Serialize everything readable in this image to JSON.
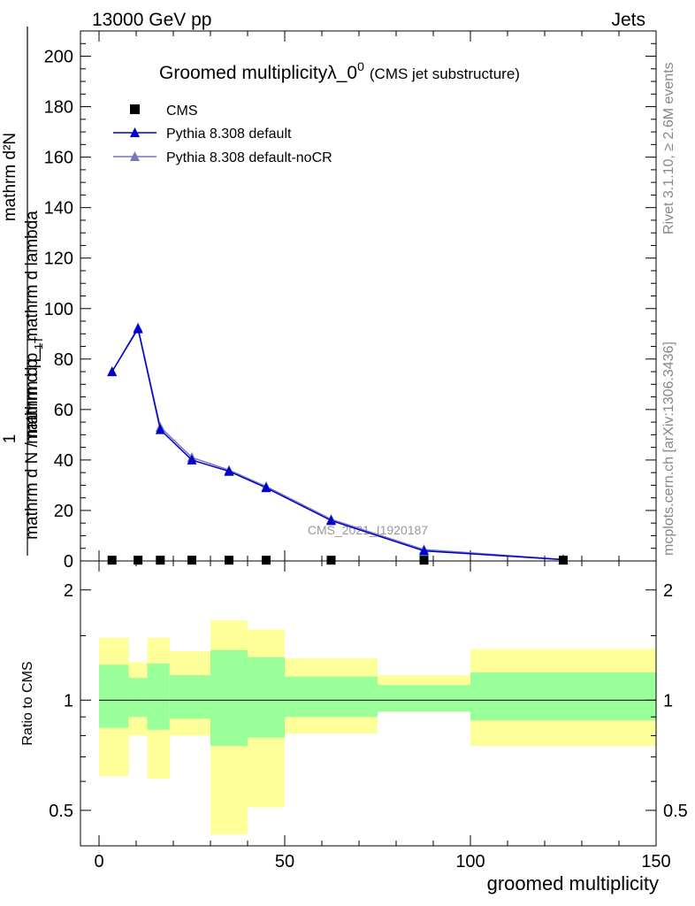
{
  "header": {
    "left": "13000 GeV pp",
    "right": "Jets"
  },
  "side_labels": {
    "rivet": "Rivet 3.1.10, ≥ 2.6M events",
    "mcplots": "mcplots.cern.ch [arXiv:1306.3436]"
  },
  "watermark": "CMS_2021_I1920187",
  "chart_data": [
    {
      "type": "line",
      "title": "Groomed multiplicityλ_0",
      "title_superscript": "0",
      "subtitle": "(CMS jet substructure)",
      "ylabel_numerator": "mathrm d²N",
      "ylabel_numerator_sub": "1",
      "ylabel_line1": "mathrm d p_",
      "ylabel_line1_b": "mathrm d lambda",
      "ylabel_denominator": "mathrm d N / mathrm d p_",
      "ylabel_denominator_b": "T",
      "ylabel_fraction_one": "1",
      "xlabel": "groomed multiplicity",
      "xlim": [
        -5,
        150
      ],
      "ylim": [
        0,
        210
      ],
      "yticks": [
        0,
        20,
        40,
        60,
        80,
        100,
        120,
        140,
        160,
        180,
        200
      ],
      "ytick_labels": [
        "0",
        "20",
        "40",
        "60",
        "80",
        "100",
        "120",
        "140",
        "160",
        "180",
        "200"
      ],
      "legend": [
        {
          "name": "CMS",
          "marker": "square",
          "color": "#000000"
        },
        {
          "name": "Pythia 8.308 default",
          "marker": "triangle",
          "color": "#0000cc"
        },
        {
          "name": "Pythia 8.308 default-noCR",
          "marker": "triangle",
          "color": "#7777bb"
        }
      ],
      "legend_position": "top-left",
      "series": [
        {
          "name": "CMS",
          "x": [
            3.5,
            10.5,
            16.5,
            25,
            35,
            45,
            62.5,
            87.5,
            125
          ],
          "y": [
            0.3,
            0.3,
            0.3,
            0.3,
            0.3,
            0.3,
            0.3,
            0.3,
            0.3
          ]
        },
        {
          "name": "Pythia 8.308 default",
          "x": [
            3.5,
            10.5,
            16.5,
            25,
            35,
            45,
            62.5,
            87.5,
            125
          ],
          "y": [
            75,
            92,
            52,
            40,
            35.5,
            29,
            16,
            4,
            0.5
          ]
        },
        {
          "name": "Pythia 8.308 default-noCR",
          "x": [
            3.5,
            10.5,
            16.5,
            25,
            35,
            45,
            62.5,
            87.5,
            125
          ],
          "y": [
            75,
            92.5,
            53,
            41,
            36,
            29.5,
            16.5,
            4.5,
            0.6
          ]
        }
      ]
    },
    {
      "type": "area",
      "ylabel": "Ratio to CMS",
      "xlabel": "groomed multiplicity",
      "xlim": [
        -5,
        150
      ],
      "ylim": [
        0.4,
        2.4
      ],
      "log_scale_y": true,
      "yticks": [
        0.5,
        1,
        2
      ],
      "ytick_labels": [
        "0.5",
        "1",
        "2"
      ],
      "xticks": [
        0,
        50,
        100,
        150
      ],
      "xtick_labels": [
        "0",
        "50",
        "100",
        "150"
      ],
      "bands": [
        {
          "x0": 0,
          "x1": 8,
          "inner": [
            0.84,
            1.25
          ],
          "outer": [
            0.62,
            1.48
          ]
        },
        {
          "x0": 8,
          "x1": 13,
          "inner": [
            0.9,
            1.15
          ],
          "outer": [
            0.8,
            1.27
          ]
        },
        {
          "x0": 13,
          "x1": 19,
          "inner": [
            0.83,
            1.26
          ],
          "outer": [
            0.61,
            1.48
          ]
        },
        {
          "x0": 19,
          "x1": 30,
          "inner": [
            0.89,
            1.17
          ],
          "outer": [
            0.8,
            1.36
          ]
        },
        {
          "x0": 30,
          "x1": 40,
          "inner": [
            0.75,
            1.37
          ],
          "outer": [
            0.43,
            1.65
          ]
        },
        {
          "x0": 40,
          "x1": 50,
          "inner": [
            0.79,
            1.31
          ],
          "outer": [
            0.51,
            1.56
          ]
        },
        {
          "x0": 50,
          "x1": 75,
          "inner": [
            0.9,
            1.16
          ],
          "outer": [
            0.81,
            1.3
          ]
        },
        {
          "x0": 75,
          "x1": 100,
          "inner": [
            0.93,
            1.1
          ],
          "outer": [
            0.93,
            1.17
          ]
        },
        {
          "x0": 100,
          "x1": 150,
          "inner": [
            0.88,
            1.19
          ],
          "outer": [
            0.75,
            1.38
          ]
        }
      ],
      "reference_line": 1
    }
  ],
  "colors": {
    "band_inner": "#99ff99",
    "band_outer": "#ffff99",
    "pythia_default": "#0000cc",
    "pythia_nocr": "#7777bb",
    "watermark": "#999999"
  }
}
